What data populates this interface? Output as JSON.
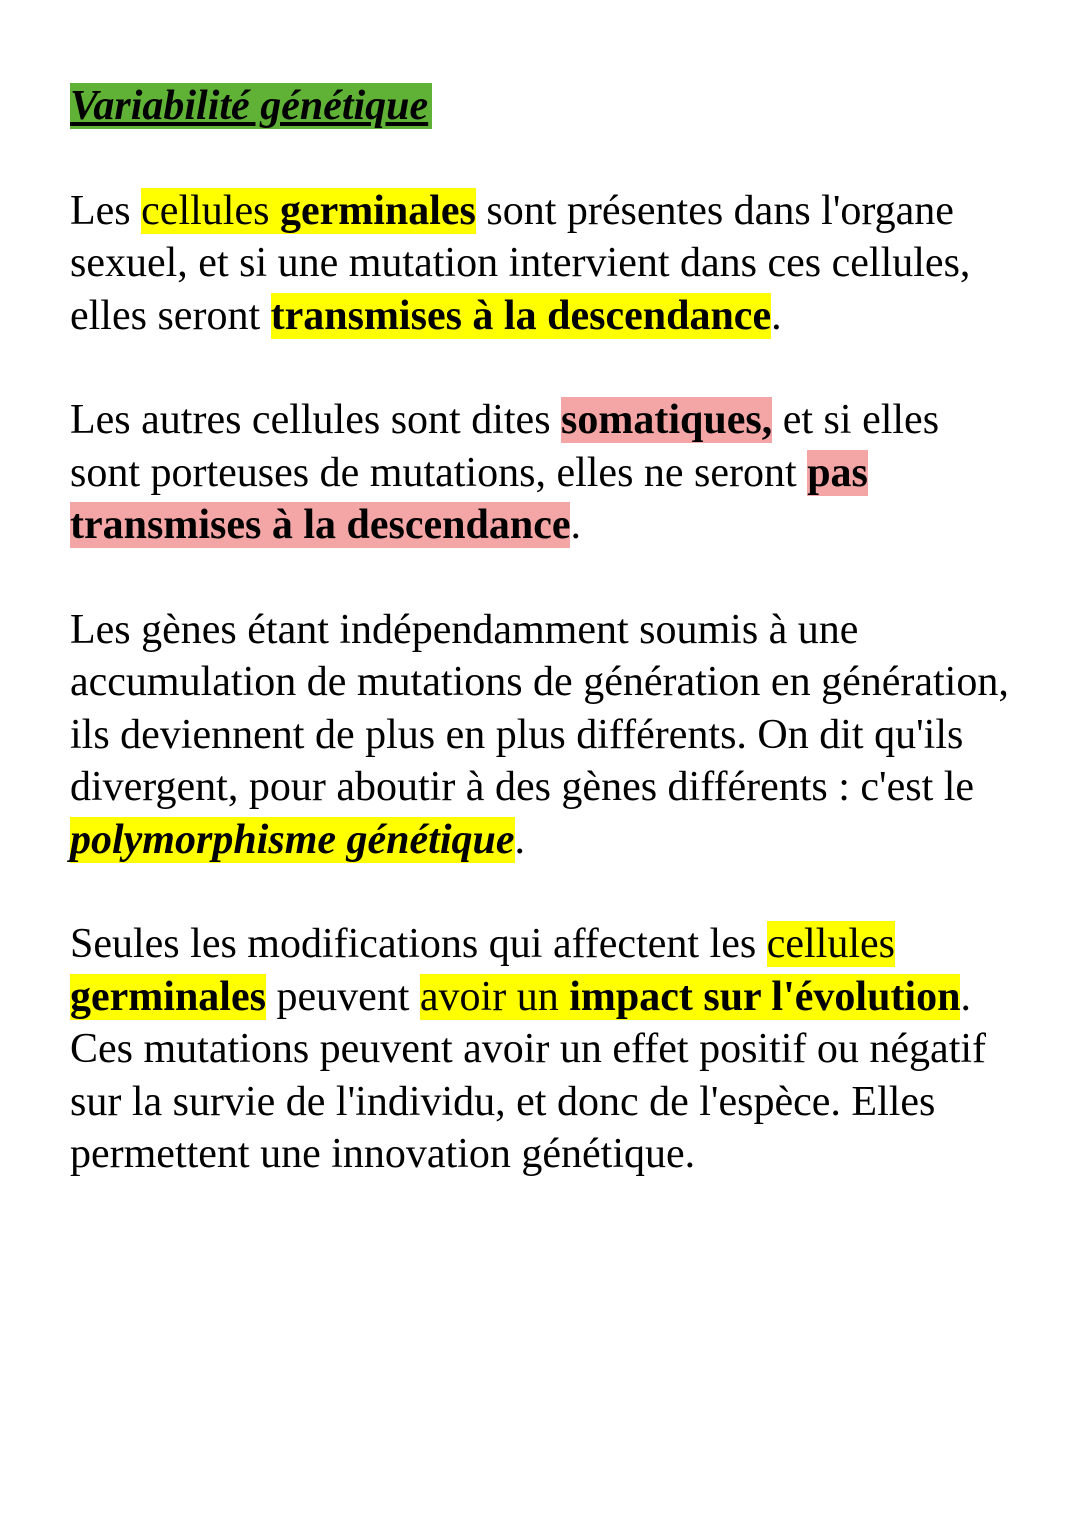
{
  "title": "Variabilité génétique",
  "colors": {
    "title_highlight": "#5fb236",
    "yellow_highlight": "#ffff00",
    "pink_highlight": "#f4a6a6",
    "text": "#000000",
    "background": "#ffffff"
  },
  "typography": {
    "font_family": "Times New Roman",
    "font_size": 42,
    "line_height": 1.25,
    "title_style": "bold italic underline"
  },
  "paragraphs": {
    "p1": {
      "s1": "Les ",
      "s2": "cellules ",
      "s3": "germinales",
      "s4": " sont présentes dans l'organe sexuel, et si une mutation intervient dans ces cellules, elles seront ",
      "s5": "transmises à la descendance",
      "s6": "."
    },
    "p2": {
      "s1": "Les autres cellules sont dites ",
      "s2": "somatiques,",
      "s3": " et si elles sont porteuses de mutations, elles ne seront ",
      "s4": "pas transmises à la descendance",
      "s5": "."
    },
    "p3": {
      "s1": "Les gènes étant indépendamment soumis à une accumulation de mutations de génération en génération, ils deviennent de plus en plus différents. On dit qu'ils divergent, pour aboutir à des gènes différents : c'est le ",
      "s2": "polymorphisme génétique",
      "s3": "."
    },
    "p4": {
      "s1": "Seules les modifications qui affectent les ",
      "s2": "cellules ",
      "s3": "germinales",
      "s4": " peuvent ",
      "s5": "avoir un ",
      "s6": "impact sur l'évolution",
      "s7": ". Ces mutations peuvent avoir un  effet positif ou négatif sur la survie de l'individu, et donc de l'espèce. Elles permettent une innovation génétique."
    }
  }
}
